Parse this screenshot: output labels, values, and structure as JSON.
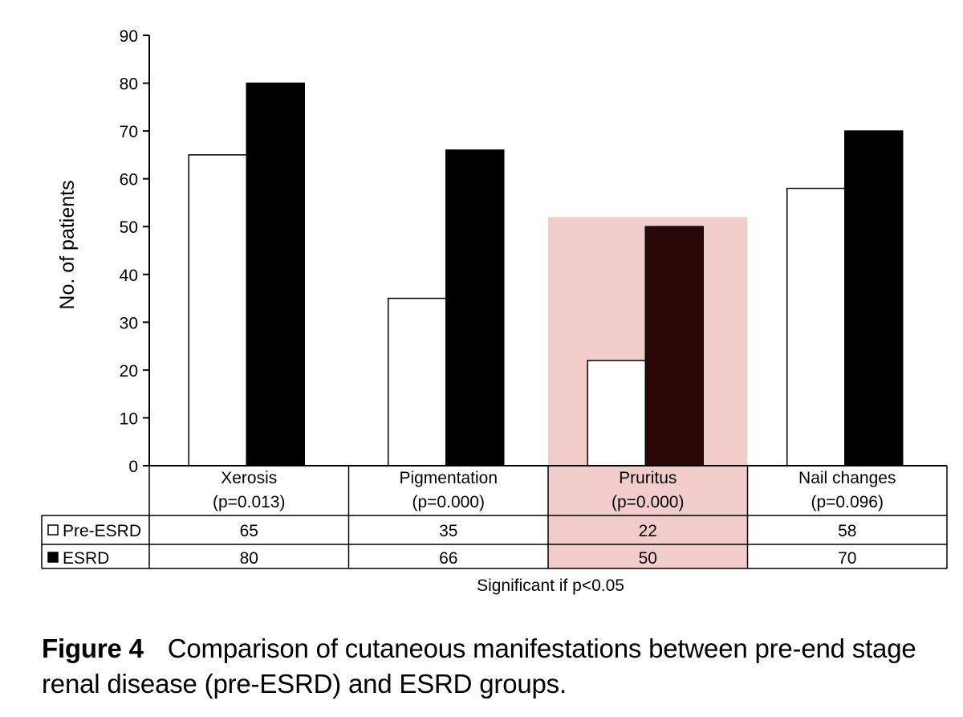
{
  "chart_data": {
    "type": "bar",
    "ylabel": "No. of patients",
    "ylim": [
      0,
      90
    ],
    "yticks": [
      "0",
      "10",
      "20",
      "30",
      "40",
      "50",
      "60",
      "70",
      "80",
      "90"
    ],
    "categories": [
      {
        "name": "Xerosis",
        "pvalue": "(p=0.013)"
      },
      {
        "name": "Pigmentation",
        "pvalue": "(p=0.000)"
      },
      {
        "name": "Pruritus",
        "pvalue": "(p=0.000)"
      },
      {
        "name": "Nail changes",
        "pvalue": "(p=0.096)"
      }
    ],
    "series": [
      {
        "name": "Pre-ESRD",
        "marker": "□",
        "color": "#ffffff",
        "values": [
          65,
          35,
          22,
          58
        ],
        "labels": [
          "65",
          "35",
          "22",
          "58"
        ]
      },
      {
        "name": "ESRD",
        "marker": "■",
        "color": "#000000",
        "values": [
          80,
          66,
          50,
          70
        ],
        "labels": [
          "80",
          "66",
          "50",
          "70"
        ]
      }
    ],
    "highlight": {
      "category_index": 2,
      "color": "#e8a0a0",
      "up_to_value": 52
    },
    "note": "Significant if p<0.05"
  },
  "caption": {
    "label": "Figure 4",
    "text": "Comparison of cutaneous manifestations between pre-end stage renal disease (pre-ESRD) and ESRD groups."
  }
}
